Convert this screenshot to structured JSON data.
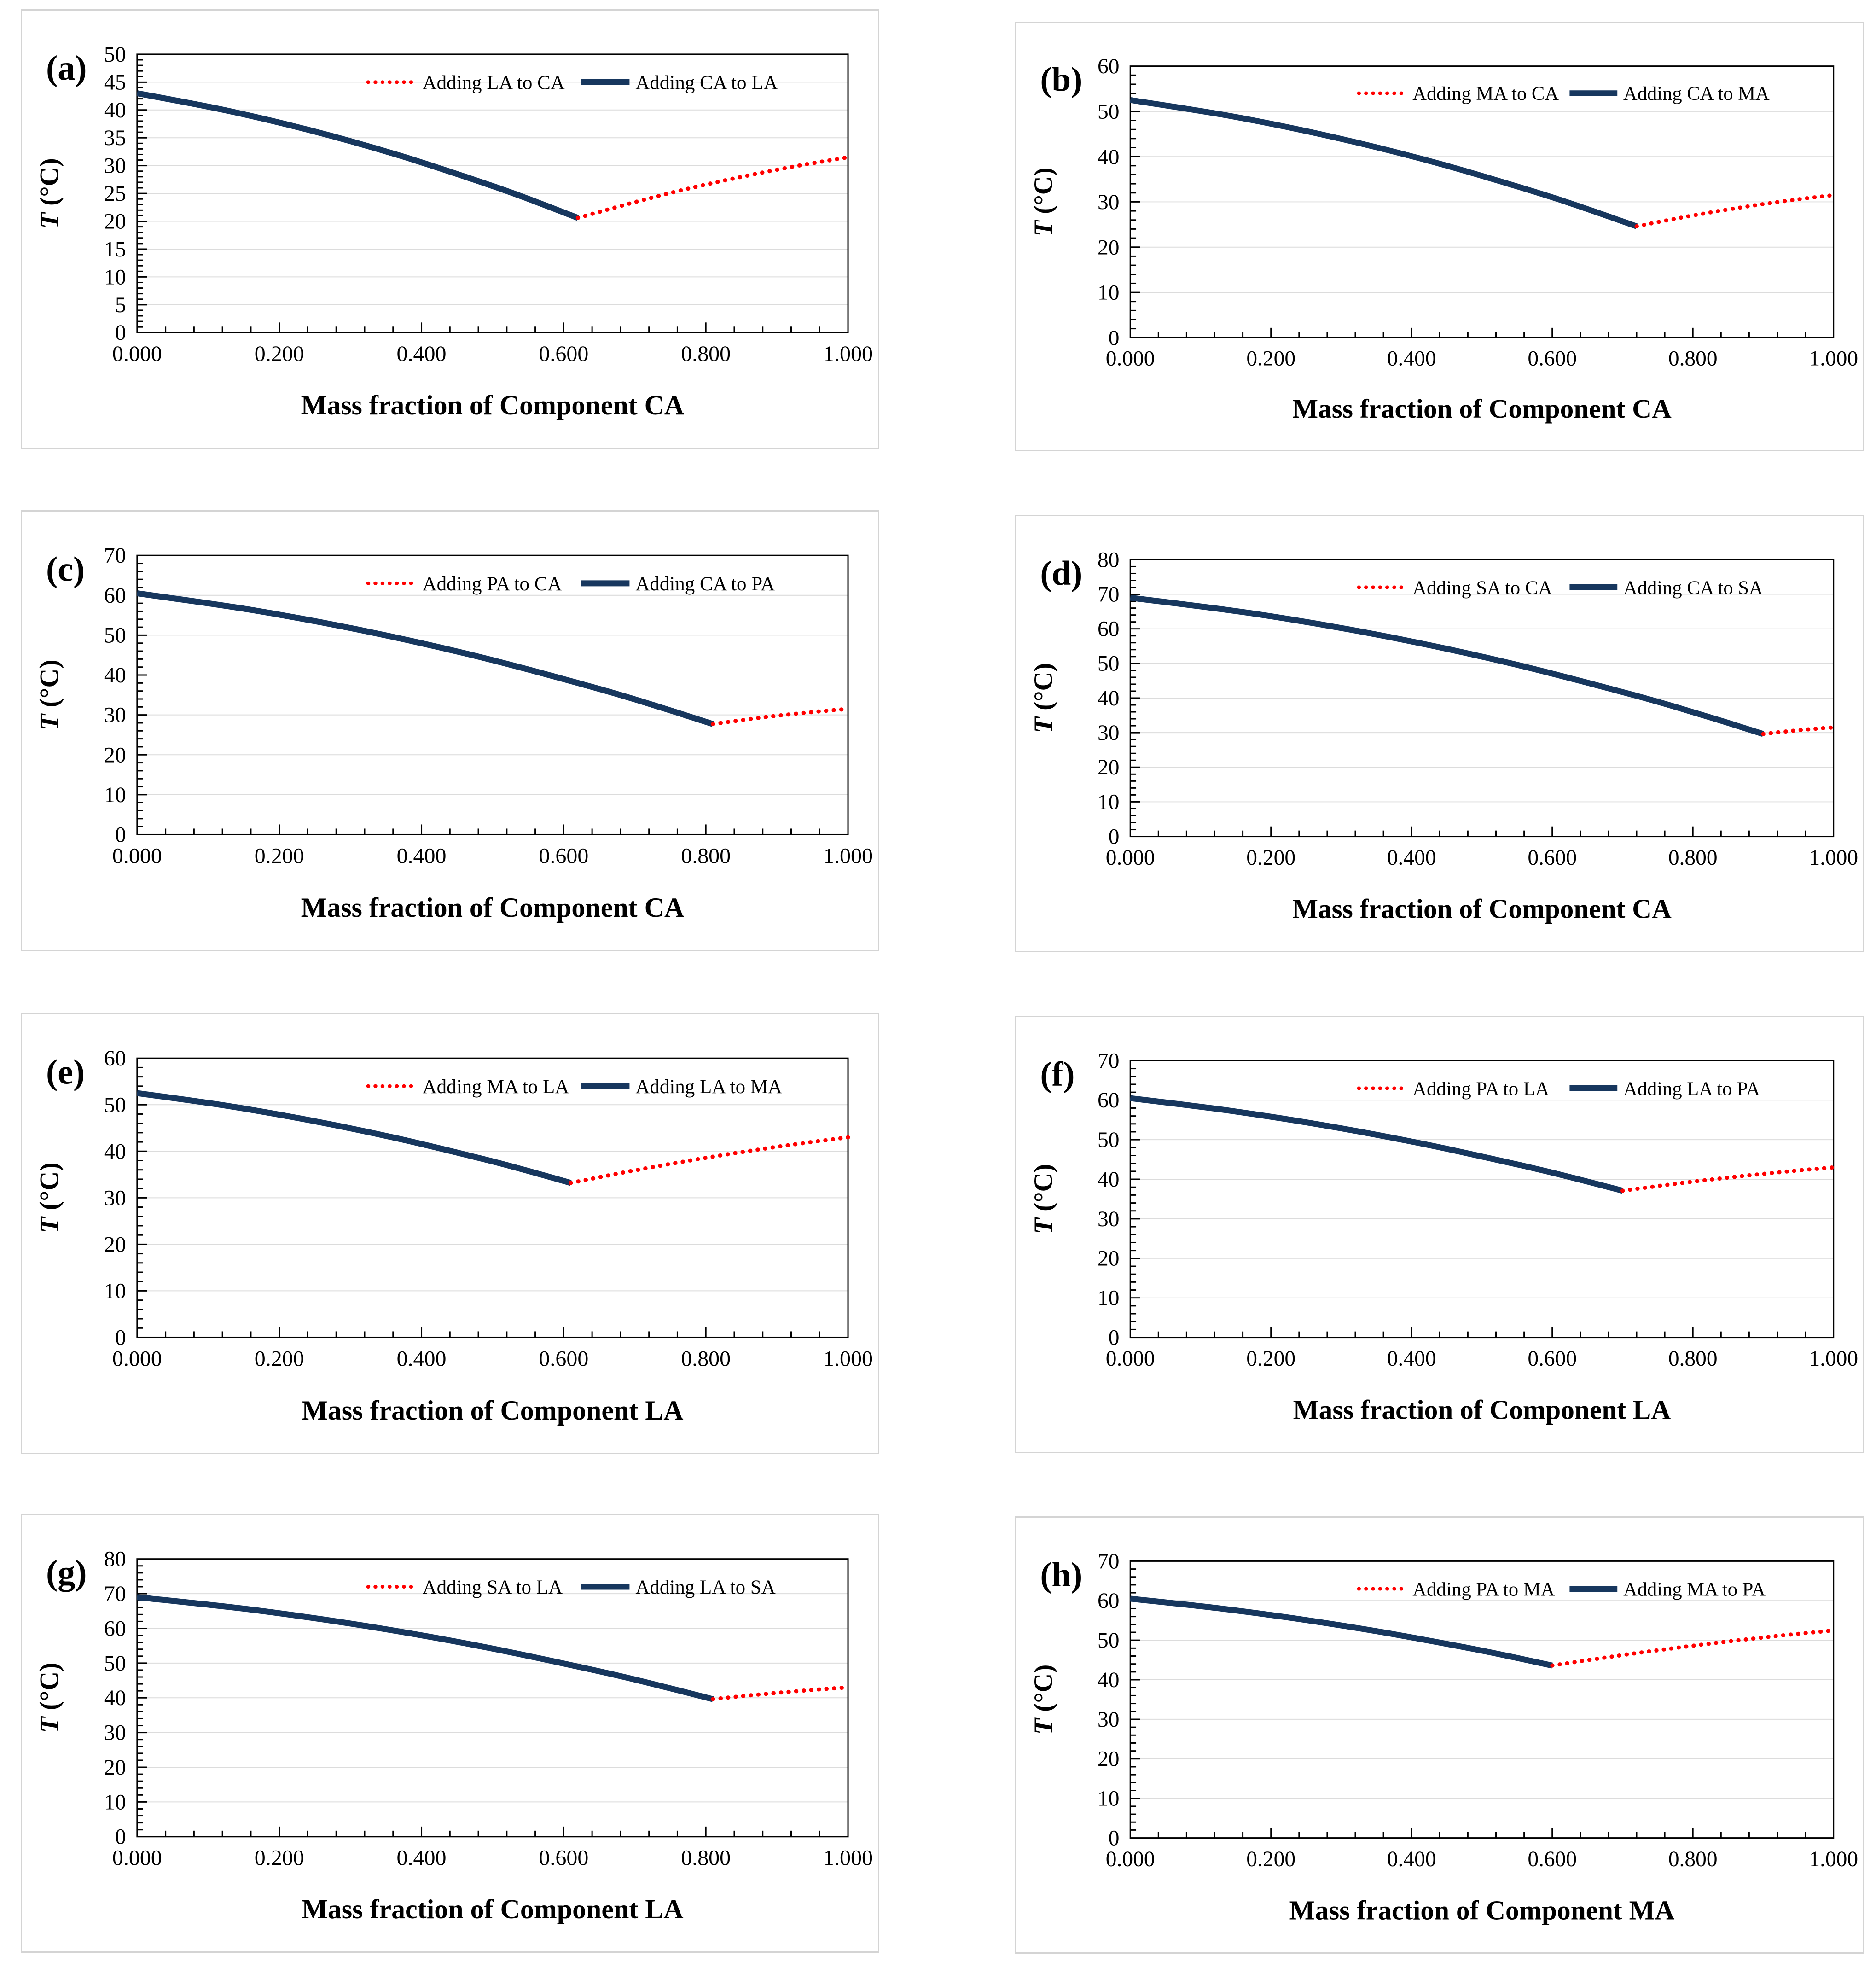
{
  "colors": {
    "dotted_series": "#FF0000",
    "solid_series": "#17375E",
    "gridline": "#DCDCDC",
    "axis": "#000000",
    "panel_border": "#D4D4D4",
    "background": "#FFFFFF"
  },
  "chart_data": [
    {
      "panel_label": "(a)",
      "type": "line",
      "xlabel": "Mass fraction of Component CA",
      "ylabel": "T (°C)",
      "ylabel_symbol": "T",
      "ylabel_unit": " (°C)",
      "xlim": [
        0,
        1
      ],
      "ylim": [
        0,
        50
      ],
      "x_major": 0.2,
      "x_minor": 0.04,
      "y_major": 5,
      "x_tick_labels": [
        "0.000",
        "0.200",
        "0.400",
        "0.600",
        "0.800",
        "1.000"
      ],
      "grid": "horizontal-major",
      "legend_position": "top-inside",
      "series": [
        {
          "name": "Adding LA to CA",
          "style": "dotted",
          "color": "#FF0000",
          "points": [
            [
              0.62,
              20.6
            ],
            [
              0.696,
              23.3
            ],
            [
              0.772,
              25.76
            ],
            [
              0.848,
              27.92
            ],
            [
              0.924,
              29.84
            ],
            [
              1,
              31.5
            ]
          ]
        },
        {
          "name": "Adding CA to LA",
          "style": "solid",
          "color": "#17375E",
          "points": [
            [
              0,
              43
            ],
            [
              0.124,
              39.95
            ],
            [
              0.248,
              36.19
            ],
            [
              0.372,
              31.71
            ],
            [
              0.496,
              26.51
            ],
            [
              0.558,
              23.65
            ],
            [
              0.62,
              20.6
            ]
          ]
        }
      ]
    },
    {
      "panel_label": "(b)",
      "type": "line",
      "xlabel": "Mass fraction of Component CA",
      "ylabel": "T (°C)",
      "ylabel_symbol": "T",
      "ylabel_unit": " (°C)",
      "xlim": [
        0,
        1
      ],
      "ylim": [
        0,
        60
      ],
      "x_major": 0.2,
      "x_minor": 0.04,
      "y_major": 10,
      "x_tick_labels": [
        "0.000",
        "0.200",
        "0.400",
        "0.600",
        "0.800",
        "1.000"
      ],
      "grid": "horizontal-major",
      "legend_position": "top-inside",
      "series": [
        {
          "name": "Adding MA to CA",
          "style": "dotted",
          "color": "#FF0000",
          "points": [
            [
              0.72,
              24.6
            ],
            [
              0.776,
              26.31
            ],
            [
              0.832,
              27.86
            ],
            [
              0.888,
              29.24
            ],
            [
              0.944,
              30.45
            ],
            [
              1,
              31.5
            ]
          ]
        },
        {
          "name": "Adding CA to MA",
          "style": "solid",
          "color": "#17375E",
          "points": [
            [
              0,
              52.5
            ],
            [
              0.144,
              48.93
            ],
            [
              0.288,
              44.35
            ],
            [
              0.432,
              38.77
            ],
            [
              0.576,
              32.19
            ],
            [
              0.648,
              28.52
            ],
            [
              0.72,
              24.6
            ]
          ]
        }
      ]
    },
    {
      "panel_label": "(c)",
      "type": "line",
      "xlabel": "Mass fraction of Component CA",
      "ylabel": "T (°C)",
      "ylabel_symbol": "T",
      "ylabel_unit": " (°C)",
      "xlim": [
        0,
        1
      ],
      "ylim": [
        0,
        70
      ],
      "x_major": 0.2,
      "x_minor": 0.04,
      "y_major": 10,
      "x_tick_labels": [
        "0.000",
        "0.200",
        "0.400",
        "0.600",
        "0.800",
        "1.000"
      ],
      "grid": "horizontal-major",
      "legend_position": "top-inside",
      "series": [
        {
          "name": "Adding PA to CA",
          "style": "dotted",
          "color": "#FF0000",
          "points": [
            [
              0.81,
              27.7
            ],
            [
              0.848,
              28.64
            ],
            [
              0.886,
              29.49
            ],
            [
              0.924,
              30.25
            ],
            [
              0.962,
              30.92
            ],
            [
              1,
              31.5
            ]
          ]
        },
        {
          "name": "Adding CA to PA",
          "style": "solid",
          "color": "#17375E",
          "points": [
            [
              0,
              60.5
            ],
            [
              0.162,
              56.3
            ],
            [
              0.324,
              50.92
            ],
            [
              0.486,
              44.36
            ],
            [
              0.648,
              36.62
            ],
            [
              0.729,
              32.31
            ],
            [
              0.81,
              27.7
            ]
          ]
        }
      ]
    },
    {
      "panel_label": "(d)",
      "type": "line",
      "xlabel": "Mass fraction of Component CA",
      "ylabel": "T (°C)",
      "ylabel_symbol": "T",
      "ylabel_unit": " (°C)",
      "xlim": [
        0,
        1
      ],
      "ylim": [
        0,
        80
      ],
      "x_major": 0.2,
      "x_minor": 0.04,
      "y_major": 10,
      "x_tick_labels": [
        "0.000",
        "0.200",
        "0.400",
        "0.600",
        "0.800",
        "1.000"
      ],
      "grid": "horizontal-major",
      "legend_position": "top-inside",
      "series": [
        {
          "name": "Adding SA to CA",
          "style": "dotted",
          "color": "#FF0000",
          "points": [
            [
              0.9,
              29.6
            ],
            [
              0.92,
              30.07
            ],
            [
              0.94,
              30.5
            ],
            [
              0.96,
              30.88
            ],
            [
              0.98,
              31.21
            ],
            [
              1,
              31.5
            ]
          ]
        },
        {
          "name": "Adding CA to SA",
          "style": "solid",
          "color": "#17375E",
          "points": [
            [
              0,
              69
            ],
            [
              0.18,
              64.27
            ],
            [
              0.36,
              57.97
            ],
            [
              0.54,
              50.09
            ],
            [
              0.72,
              40.63
            ],
            [
              0.81,
              35.31
            ],
            [
              0.855,
              32.5
            ],
            [
              0.9,
              29.6
            ]
          ]
        }
      ]
    },
    {
      "panel_label": "(e)",
      "type": "line",
      "xlabel": "Mass fraction of Component LA",
      "ylabel": "T (°C)",
      "ylabel_symbol": "T",
      "ylabel_unit": " (°C)",
      "xlim": [
        0,
        1
      ],
      "ylim": [
        0,
        60
      ],
      "x_major": 0.2,
      "x_minor": 0.04,
      "y_major": 10,
      "x_tick_labels": [
        "0.000",
        "0.200",
        "0.400",
        "0.600",
        "0.800",
        "1.000"
      ],
      "grid": "horizontal-major",
      "legend_position": "top-inside",
      "series": [
        {
          "name": "Adding MA to LA",
          "style": "dotted",
          "color": "#FF0000",
          "points": [
            [
              0.61,
              33.2
            ],
            [
              0.688,
              35.55
            ],
            [
              0.766,
              37.71
            ],
            [
              0.844,
              39.67
            ],
            [
              0.922,
              41.43
            ],
            [
              1,
              43
            ]
          ]
        },
        {
          "name": "Adding LA to MA",
          "style": "solid",
          "color": "#17375E",
          "points": [
            [
              0,
              52.5
            ],
            [
              0.122,
              49.88
            ],
            [
              0.244,
              46.63
            ],
            [
              0.366,
              42.77
            ],
            [
              0.488,
              38.29
            ],
            [
              0.549,
              35.82
            ],
            [
              0.61,
              33.2
            ]
          ]
        }
      ]
    },
    {
      "panel_label": "(f)",
      "type": "line",
      "xlabel": "Mass fraction of Component LA",
      "ylabel": "T (°C)",
      "ylabel_symbol": "T",
      "ylabel_unit": " (°C)",
      "xlim": [
        0,
        1
      ],
      "ylim": [
        0,
        70
      ],
      "x_major": 0.2,
      "x_minor": 0.04,
      "y_major": 10,
      "x_tick_labels": [
        "0.000",
        "0.200",
        "0.400",
        "0.600",
        "0.800",
        "1.000"
      ],
      "grid": "horizontal-major",
      "legend_position": "top-inside",
      "series": [
        {
          "name": "Adding PA to LA",
          "style": "dotted",
          "color": "#FF0000",
          "points": [
            [
              0.7,
              37.1
            ],
            [
              0.76,
              38.52
            ],
            [
              0.82,
              39.81
            ],
            [
              0.88,
              40.99
            ],
            [
              0.94,
              42.06
            ],
            [
              1,
              43
            ]
          ]
        },
        {
          "name": "Adding LA to PA",
          "style": "solid",
          "color": "#17375E",
          "points": [
            [
              0,
              60.5
            ],
            [
              0.14,
              57.39
            ],
            [
              0.28,
              53.5
            ],
            [
              0.42,
              48.82
            ],
            [
              0.56,
              43.35
            ],
            [
              0.63,
              40.33
            ],
            [
              0.7,
              37.1
            ]
          ]
        }
      ]
    },
    {
      "panel_label": "(g)",
      "type": "line",
      "xlabel": "Mass fraction of Component LA",
      "ylabel": "T (°C)",
      "ylabel_symbol": "T",
      "ylabel_unit": " (°C)",
      "xlim": [
        0,
        1
      ],
      "ylim": [
        0,
        80
      ],
      "x_major": 0.2,
      "x_minor": 0.04,
      "y_major": 10,
      "x_tick_labels": [
        "0.000",
        "0.200",
        "0.400",
        "0.600",
        "0.800",
        "1.000"
      ],
      "grid": "horizontal-major",
      "legend_position": "top-inside",
      "series": [
        {
          "name": "Adding SA to LA",
          "style": "dotted",
          "color": "#FF0000",
          "points": [
            [
              0.81,
              39.6
            ],
            [
              0.848,
              40.42
            ],
            [
              0.886,
              41.16
            ],
            [
              0.924,
              41.84
            ],
            [
              0.962,
              42.46
            ],
            [
              1,
              43
            ]
          ]
        },
        {
          "name": "Adding LA to SA",
          "style": "solid",
          "color": "#17375E",
          "points": [
            [
              0,
              69
            ],
            [
              0.162,
              65.38
            ],
            [
              0.324,
              60.63
            ],
            [
              0.486,
              54.75
            ],
            [
              0.648,
              47.74
            ],
            [
              0.729,
              43.81
            ],
            [
              0.81,
              39.6
            ]
          ]
        }
      ]
    },
    {
      "panel_label": "(h)",
      "type": "line",
      "xlabel": "Mass fraction of Component MA",
      "ylabel": "T (°C)",
      "ylabel_symbol": "T",
      "ylabel_unit": " (°C)",
      "xlim": [
        0,
        1
      ],
      "ylim": [
        0,
        70
      ],
      "x_major": 0.2,
      "x_minor": 0.04,
      "y_major": 10,
      "x_tick_labels": [
        "0.000",
        "0.200",
        "0.400",
        "0.600",
        "0.800",
        "1.000"
      ],
      "grid": "horizontal-major",
      "legend_position": "top-inside",
      "series": [
        {
          "name": "Adding PA to MA",
          "style": "dotted",
          "color": "#FF0000",
          "points": [
            [
              0.6,
              43.6
            ],
            [
              0.68,
              45.74
            ],
            [
              0.76,
              47.69
            ],
            [
              0.84,
              49.47
            ],
            [
              0.92,
              51.08
            ],
            [
              1,
              52.5
            ]
          ]
        },
        {
          "name": "Adding MA to PA",
          "style": "solid",
          "color": "#17375E",
          "points": [
            [
              0,
              60.5
            ],
            [
              0.12,
              58.2
            ],
            [
              0.24,
              55.36
            ],
            [
              0.36,
              51.98
            ],
            [
              0.48,
              48.06
            ],
            [
              0.54,
              45.9
            ],
            [
              0.6,
              43.6
            ]
          ]
        }
      ]
    }
  ]
}
